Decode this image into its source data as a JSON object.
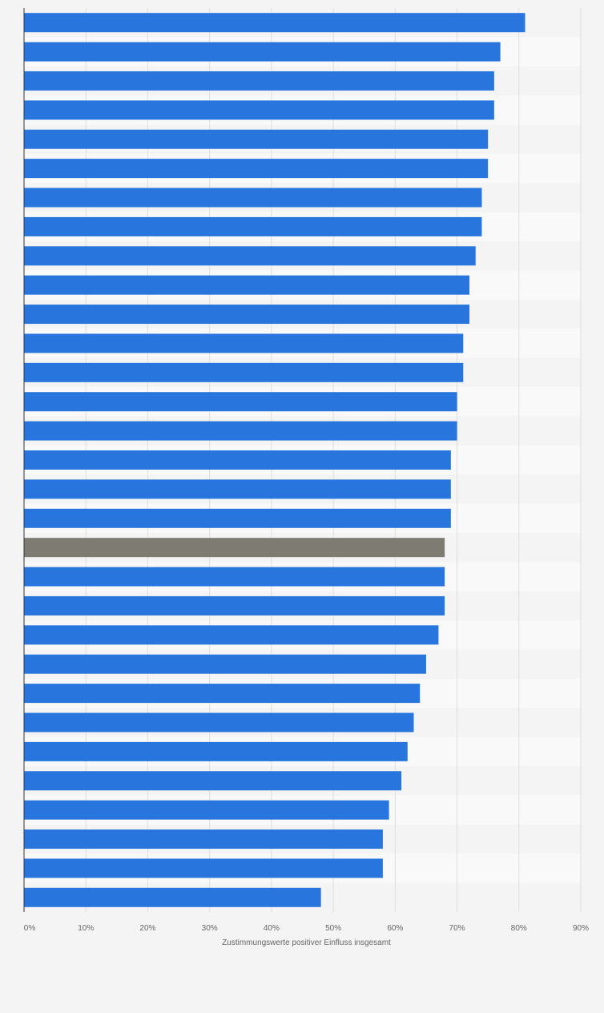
{
  "chart_data": {
    "type": "bar",
    "orientation": "horizontal",
    "xlabel": "Zustimmungswerte positiver Einfluss insgesamt",
    "xlim": [
      0,
      90
    ],
    "x_ticks": [
      "0%",
      "10%",
      "20%",
      "30%",
      "40%",
      "50%",
      "60%",
      "70%",
      "80%",
      "90%"
    ],
    "values": [
      81,
      77,
      76,
      76,
      75,
      75,
      74,
      74,
      73,
      72,
      72,
      71,
      71,
      70,
      70,
      69,
      69,
      69,
      68,
      68,
      68,
      67,
      65,
      64,
      63,
      62,
      61,
      59,
      58,
      58,
      48
    ],
    "highlight_index": 18,
    "colors": {
      "bar": "#2876dd",
      "highlight": "#7d7b72",
      "background": "#f4f4f4",
      "band": "#f9f9f9",
      "grid": "#dedede",
      "axis": "#333333",
      "text": "#666666"
    },
    "grid": true,
    "legend": "none"
  }
}
